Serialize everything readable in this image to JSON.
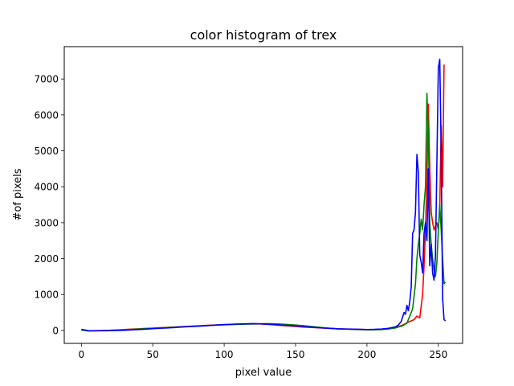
{
  "chart_data": {
    "type": "line",
    "title": "color histogram of trex",
    "xlabel": "pixel value",
    "ylabel": "#of pixels",
    "xlim": [
      -12,
      267
    ],
    "ylim": [
      -360,
      7900
    ],
    "xticks": [
      0,
      50,
      100,
      150,
      200,
      250
    ],
    "yticks": [
      0,
      1000,
      2000,
      3000,
      4000,
      5000,
      6000,
      7000
    ],
    "grid": false,
    "legend": "none",
    "series": [
      {
        "color": "#ff0000",
        "points": [
          [
            0,
            20
          ],
          [
            5,
            -10
          ],
          [
            10,
            -5
          ],
          [
            15,
            0
          ],
          [
            20,
            5
          ],
          [
            25,
            15
          ],
          [
            30,
            25
          ],
          [
            35,
            35
          ],
          [
            40,
            45
          ],
          [
            45,
            55
          ],
          [
            50,
            65
          ],
          [
            55,
            75
          ],
          [
            60,
            85
          ],
          [
            65,
            95
          ],
          [
            70,
            105
          ],
          [
            75,
            115
          ],
          [
            80,
            125
          ],
          [
            85,
            135
          ],
          [
            90,
            145
          ],
          [
            95,
            155
          ],
          [
            100,
            165
          ],
          [
            105,
            170
          ],
          [
            110,
            175
          ],
          [
            115,
            180
          ],
          [
            120,
            185
          ],
          [
            125,
            180
          ],
          [
            130,
            170
          ],
          [
            135,
            155
          ],
          [
            140,
            140
          ],
          [
            145,
            125
          ],
          [
            150,
            110
          ],
          [
            155,
            95
          ],
          [
            160,
            85
          ],
          [
            165,
            75
          ],
          [
            170,
            65
          ],
          [
            175,
            55
          ],
          [
            180,
            45
          ],
          [
            185,
            40
          ],
          [
            190,
            35
          ],
          [
            195,
            30
          ],
          [
            200,
            25
          ],
          [
            205,
            25
          ],
          [
            210,
            30
          ],
          [
            215,
            45
          ],
          [
            220,
            80
          ],
          [
            225,
            150
          ],
          [
            230,
            250
          ],
          [
            233,
            300
          ],
          [
            235,
            400
          ],
          [
            237,
            350
          ],
          [
            239,
            1000
          ],
          [
            240,
            1800
          ],
          [
            241,
            2800
          ],
          [
            242,
            4200
          ],
          [
            243,
            6300
          ],
          [
            244,
            4500
          ],
          [
            245,
            3300
          ],
          [
            246,
            3000
          ],
          [
            247,
            2800
          ],
          [
            248,
            2900
          ],
          [
            249,
            3000
          ],
          [
            250,
            2800
          ],
          [
            251,
            3400
          ],
          [
            252,
            5700
          ],
          [
            253,
            4000
          ],
          [
            254,
            7400
          ]
        ]
      },
      {
        "color": "#008000",
        "points": [
          [
            0,
            10
          ],
          [
            5,
            -15
          ],
          [
            10,
            -10
          ],
          [
            15,
            -5
          ],
          [
            20,
            0
          ],
          [
            25,
            10
          ],
          [
            30,
            20
          ],
          [
            35,
            30
          ],
          [
            40,
            40
          ],
          [
            45,
            50
          ],
          [
            50,
            60
          ],
          [
            55,
            70
          ],
          [
            60,
            80
          ],
          [
            65,
            90
          ],
          [
            70,
            100
          ],
          [
            75,
            110
          ],
          [
            80,
            120
          ],
          [
            85,
            130
          ],
          [
            90,
            140
          ],
          [
            95,
            150
          ],
          [
            100,
            160
          ],
          [
            105,
            165
          ],
          [
            110,
            170
          ],
          [
            115,
            175
          ],
          [
            120,
            180
          ],
          [
            125,
            185
          ],
          [
            130,
            190
          ],
          [
            135,
            185
          ],
          [
            140,
            175
          ],
          [
            145,
            165
          ],
          [
            150,
            150
          ],
          [
            155,
            135
          ],
          [
            160,
            115
          ],
          [
            165,
            95
          ],
          [
            170,
            75
          ],
          [
            175,
            60
          ],
          [
            180,
            45
          ],
          [
            185,
            35
          ],
          [
            190,
            30
          ],
          [
            195,
            25
          ],
          [
            200,
            20
          ],
          [
            205,
            20
          ],
          [
            210,
            25
          ],
          [
            215,
            40
          ],
          [
            220,
            70
          ],
          [
            225,
            130
          ],
          [
            228,
            200
          ],
          [
            230,
            400
          ],
          [
            232,
            600
          ],
          [
            234,
            1300
          ],
          [
            235,
            2000
          ],
          [
            236,
            2400
          ],
          [
            237,
            2700
          ],
          [
            238,
            3100
          ],
          [
            239,
            2800
          ],
          [
            240,
            3500
          ],
          [
            241,
            4000
          ],
          [
            242,
            6600
          ],
          [
            243,
            5500
          ],
          [
            244,
            3000
          ],
          [
            245,
            2400
          ],
          [
            246,
            2000
          ],
          [
            247,
            1700
          ],
          [
            248,
            1500
          ],
          [
            249,
            1900
          ],
          [
            250,
            2800
          ],
          [
            251,
            3500
          ],
          [
            252,
            2800
          ],
          [
            253,
            2000
          ],
          [
            254,
            1300
          ],
          [
            255,
            1350
          ]
        ]
      },
      {
        "color": "#0000ff",
        "points": [
          [
            0,
            30
          ],
          [
            5,
            -5
          ],
          [
            10,
            -10
          ],
          [
            15,
            -8
          ],
          [
            20,
            -5
          ],
          [
            25,
            0
          ],
          [
            30,
            5
          ],
          [
            35,
            15
          ],
          [
            40,
            25
          ],
          [
            45,
            35
          ],
          [
            50,
            50
          ],
          [
            55,
            60
          ],
          [
            60,
            70
          ],
          [
            65,
            80
          ],
          [
            70,
            95
          ],
          [
            75,
            105
          ],
          [
            80,
            115
          ],
          [
            85,
            125
          ],
          [
            90,
            140
          ],
          [
            95,
            150
          ],
          [
            100,
            160
          ],
          [
            105,
            170
          ],
          [
            110,
            180
          ],
          [
            115,
            185
          ],
          [
            120,
            190
          ],
          [
            125,
            185
          ],
          [
            130,
            175
          ],
          [
            135,
            165
          ],
          [
            140,
            150
          ],
          [
            145,
            140
          ],
          [
            150,
            125
          ],
          [
            155,
            110
          ],
          [
            160,
            95
          ],
          [
            165,
            80
          ],
          [
            170,
            65
          ],
          [
            175,
            55
          ],
          [
            180,
            45
          ],
          [
            185,
            40
          ],
          [
            190,
            35
          ],
          [
            195,
            30
          ],
          [
            200,
            25
          ],
          [
            205,
            30
          ],
          [
            210,
            40
          ],
          [
            215,
            60
          ],
          [
            220,
            100
          ],
          [
            222,
            150
          ],
          [
            224,
            250
          ],
          [
            226,
            500
          ],
          [
            227,
            450
          ],
          [
            228,
            700
          ],
          [
            229,
            550
          ],
          [
            230,
            800
          ],
          [
            231,
            1200
          ],
          [
            232,
            2700
          ],
          [
            233,
            2800
          ],
          [
            234,
            3300
          ],
          [
            235,
            4900
          ],
          [
            236,
            4400
          ],
          [
            237,
            2100
          ],
          [
            238,
            1900
          ],
          [
            239,
            1600
          ],
          [
            240,
            2700
          ],
          [
            241,
            3000
          ],
          [
            242,
            2500
          ],
          [
            243,
            4500
          ],
          [
            244,
            1800
          ],
          [
            245,
            2400
          ],
          [
            246,
            1600
          ],
          [
            247,
            1400
          ],
          [
            248,
            2100
          ],
          [
            249,
            4700
          ],
          [
            250,
            7300
          ],
          [
            251,
            7550
          ],
          [
            252,
            5000
          ],
          [
            253,
            900
          ],
          [
            254,
            300
          ],
          [
            255,
            270
          ]
        ]
      }
    ]
  }
}
